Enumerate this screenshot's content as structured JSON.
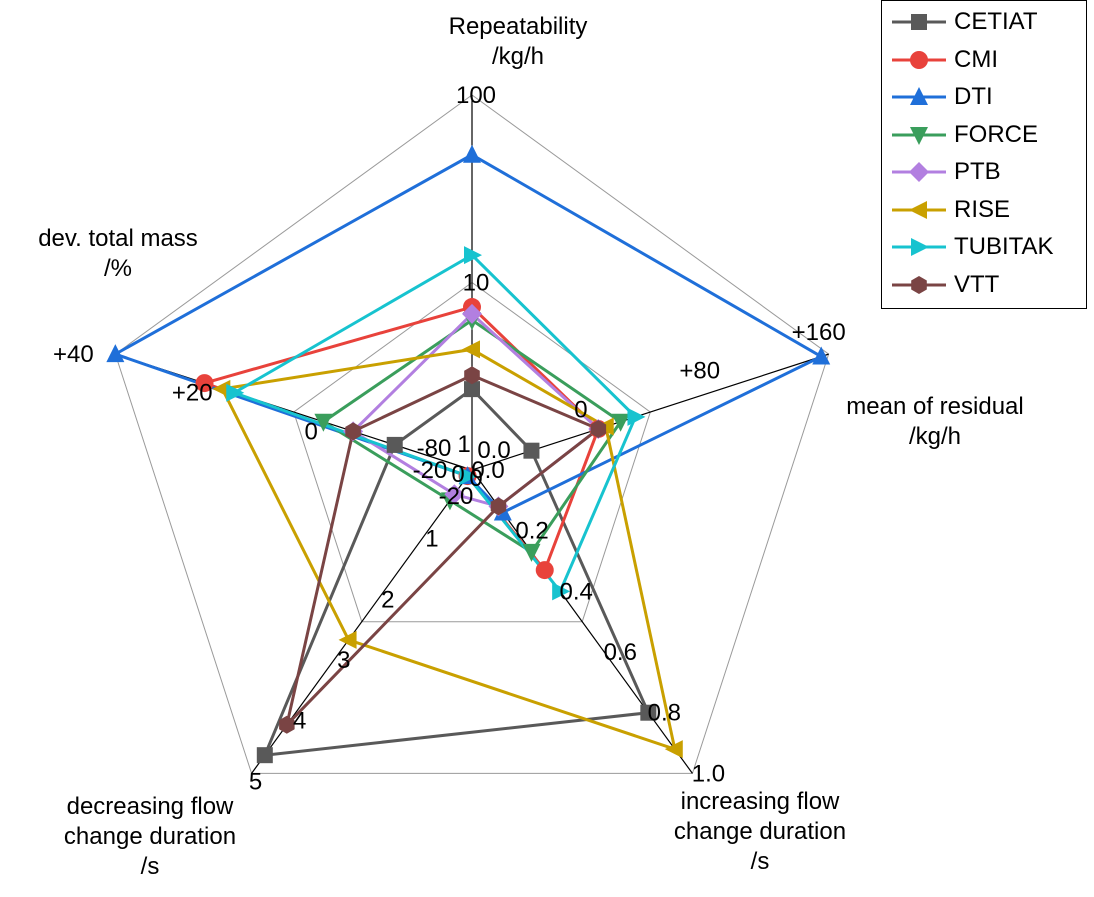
{
  "chart_data": {
    "type": "radar",
    "axes": [
      {
        "label_lines": [
          "Repeatability",
          "/kg/h"
        ],
        "ticks": [
          "10",
          "100"
        ],
        "scale": "log",
        "range": [
          1,
          100
        ]
      },
      {
        "label_lines": [
          "mean of residual",
          "/kg/h"
        ],
        "ticks": [
          "0",
          "+80",
          "+160"
        ],
        "range": [
          -80,
          160
        ]
      },
      {
        "label_lines": [
          "increasing flow",
          "change duration",
          "/s"
        ],
        "ticks": [
          "0.0",
          "0.2",
          "0.4",
          "0.6",
          "0.8",
          "1.0"
        ],
        "range": [
          0,
          1.0
        ]
      },
      {
        "label_lines": [
          "decreasing flow",
          "change duration",
          "/s"
        ],
        "ticks": [
          "0",
          "1",
          "2",
          "3",
          "4",
          "5"
        ],
        "range": [
          0,
          5
        ]
      },
      {
        "label_lines": [
          "dev. total mass",
          "/%"
        ],
        "ticks": [
          "-20",
          "0",
          "+20",
          "+40"
        ],
        "range": [
          -20,
          40
        ]
      }
    ],
    "center_labels": [
      "1",
      "-80",
      "0.0",
      "0",
      "-20"
    ],
    "series": [
      {
        "name": "CETIAT",
        "color": "#595959",
        "marker": "square",
        "values": [
          2.7,
          -40,
          0.8,
          4.7,
          -7
        ]
      },
      {
        "name": "CMI",
        "color": "#e8423b",
        "marker": "circle",
        "values": [
          7.4,
          5,
          0.33,
          0.1,
          25
        ]
      },
      {
        "name": "DTI",
        "color": "#1f6fd9",
        "marker": "triangle-up",
        "values": [
          48,
          155,
          0.14,
          0.1,
          44
        ]
      },
      {
        "name": "FORCE",
        "color": "#3a9e5c",
        "marker": "triangle-down",
        "values": [
          6.3,
          20,
          0.27,
          0.5,
          5
        ]
      },
      {
        "name": "PTB",
        "color": "#b27fe0",
        "marker": "diamond",
        "values": [
          6.8,
          5,
          0.12,
          0.4,
          0
        ]
      },
      {
        "name": "RISE",
        "color": "#c9a000",
        "marker": "triangle-left",
        "values": [
          4.4,
          10,
          0.92,
          2.8,
          22
        ]
      },
      {
        "name": "TUBITAK",
        "color": "#17c3cf",
        "marker": "triangle-right",
        "values": [
          14,
          30,
          0.4,
          0.1,
          20
        ]
      },
      {
        "name": "VTT",
        "color": "#7a4444",
        "marker": "hexagon",
        "values": [
          3.2,
          5,
          0.12,
          4.2,
          0
        ]
      }
    ]
  }
}
